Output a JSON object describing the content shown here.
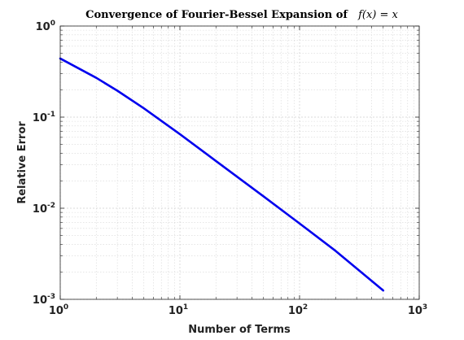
{
  "chart_data": {
    "type": "line",
    "title": "Convergence of Fourier-Bessel Expansion of",
    "title_math": "f(x) = x",
    "xlabel": "Number of Terms",
    "ylabel": "Relative Error",
    "xscale": "log",
    "yscale": "log",
    "xlim": [
      1,
      1000
    ],
    "ylim": [
      0.001,
      1
    ],
    "grid": true,
    "minor_grid": true,
    "x_ticks": [
      {
        "base": "10",
        "exp": "0",
        "value": 1
      },
      {
        "base": "10",
        "exp": "1",
        "value": 10
      },
      {
        "base": "10",
        "exp": "2",
        "value": 100
      },
      {
        "base": "10",
        "exp": "3",
        "value": 1000
      }
    ],
    "y_ticks": [
      {
        "base": "10",
        "exp": "0",
        "value": 1
      },
      {
        "base": "10",
        "exp": "-1",
        "value": 0.1
      },
      {
        "base": "10",
        "exp": "-2",
        "value": 0.01
      },
      {
        "base": "10",
        "exp": "-3",
        "value": 0.001
      }
    ],
    "series": [
      {
        "color": "#0000ee",
        "x": [
          1,
          2,
          3,
          5,
          10,
          20,
          50,
          100,
          200,
          500
        ],
        "y": [
          0.44,
          0.27,
          0.195,
          0.125,
          0.065,
          0.033,
          0.0135,
          0.0068,
          0.0034,
          0.00125
        ]
      }
    ]
  }
}
